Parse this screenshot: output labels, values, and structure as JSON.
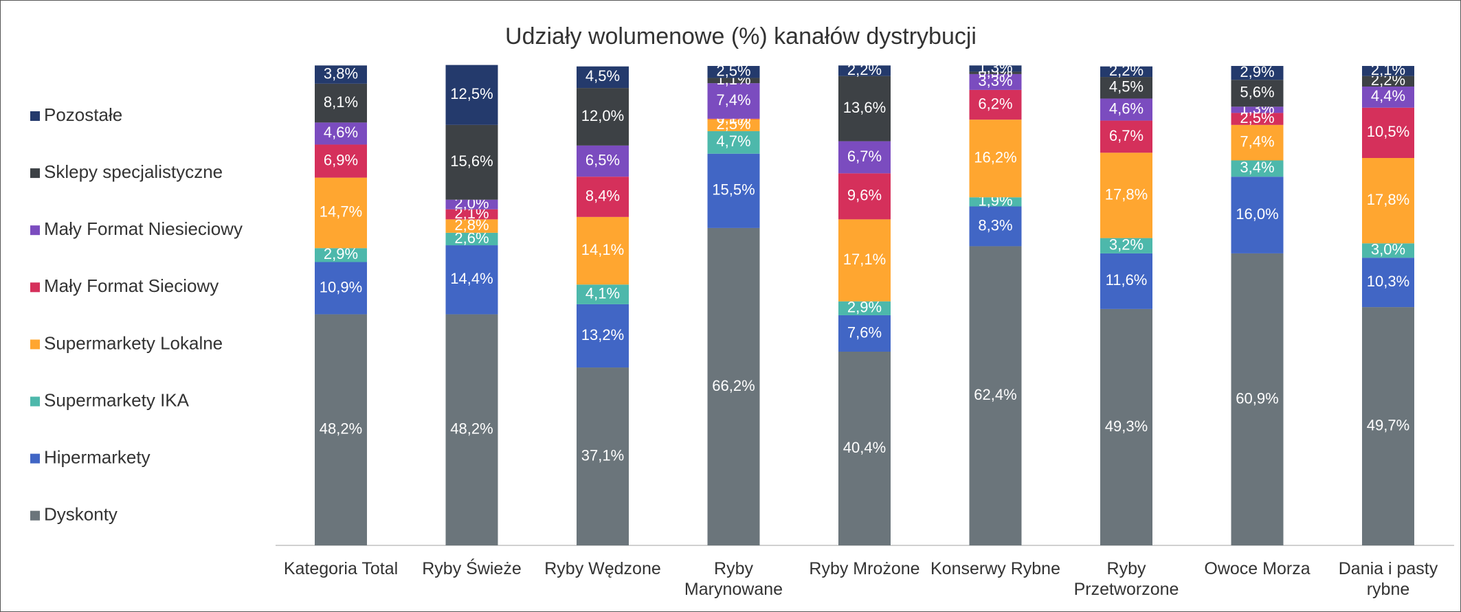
{
  "chart_data": {
    "type": "stacked_bar",
    "title": "Udziały wolumenowe (%) kanałów dystrybucji",
    "categories": [
      "Kategoria Total",
      "Ryby Świeże",
      "Ryby Wędzone",
      "Ryby Marynowane",
      "Ryby Mrożone",
      "Konserwy Rybne",
      "Ryby Przetworzone",
      "Owoce Morza",
      "Dania i pasty rybne"
    ],
    "ylim": [
      0,
      100
    ],
    "legend": "left",
    "series": [
      {
        "name": "Dyskonty",
        "color": "#6b757b",
        "values": [
          48.2,
          48.2,
          37.1,
          66.2,
          40.4,
          62.4,
          49.3,
          60.9,
          49.7
        ],
        "value_labels": [
          "48,2%",
          "48,2%",
          "37,1%",
          "66,2%",
          "40,4%",
          "62,4%",
          "49,3%",
          "60,9%",
          "49,7%"
        ]
      },
      {
        "name": "Hipermarkety",
        "color": "#4166c5",
        "values": [
          10.9,
          14.4,
          13.2,
          15.5,
          7.6,
          8.3,
          11.6,
          16.0,
          10.3
        ],
        "value_labels": [
          "10,9%",
          "14,4%",
          "13,2%",
          "15,5%",
          "7,6%",
          "8,3%",
          "11,6%",
          "16,0%",
          "10,3%"
        ]
      },
      {
        "name": "Supermarkety IKA",
        "color": "#4db8ab",
        "values": [
          2.9,
          2.6,
          4.1,
          4.7,
          2.9,
          1.9,
          3.2,
          3.4,
          3.0
        ],
        "value_labels": [
          "2,9%",
          "2,6%",
          "4,1%",
          "4,7%",
          "2,9%",
          "1,9%",
          "3,2%",
          "3,4%",
          "3,0%"
        ]
      },
      {
        "name": "Supermarkety Lokalne",
        "color": "#ffa630",
        "values": [
          14.7,
          2.8,
          14.1,
          2.5,
          17.1,
          16.2,
          17.8,
          7.4,
          17.8
        ],
        "value_labels": [
          "14,7%",
          "2,8%",
          "14,1%",
          "2,5%",
          "17,1%",
          "16,2%",
          "17,8%",
          "7,4%",
          "17,8%"
        ]
      },
      {
        "name": "Mały Format Sieciowy",
        "color": "#d5305b",
        "values": [
          6.9,
          2.1,
          8.4,
          0.1,
          9.6,
          6.2,
          6.7,
          2.5,
          10.5
        ],
        "value_labels": [
          "6,9%",
          "2,1%",
          "8,4%",
          "0,1%",
          "9,6%",
          "6,2%",
          "6,7%",
          "2,5%",
          "10,5%"
        ]
      },
      {
        "name": "Mały Format Niesieciowy",
        "color": "#7b4cbf",
        "values": [
          4.6,
          2.0,
          6.5,
          7.4,
          6.7,
          3.3,
          4.6,
          1.3,
          4.4
        ],
        "value_labels": [
          "4,6%",
          "2,0%",
          "6,5%",
          "7,4%",
          "6,7%",
          "3,3%",
          "4,6%",
          "1,3%",
          "4,4%"
        ]
      },
      {
        "name": "Sklepy specjalistyczne",
        "color": "#3d4145",
        "values": [
          8.1,
          15.6,
          12.0,
          1.1,
          13.6,
          0.5,
          4.5,
          5.6,
          2.2
        ],
        "value_labels": [
          "8,1%",
          "15,6%",
          "12,0%",
          "1,1%",
          "13,6%",
          "0,5%",
          "4,5%",
          "5,6%",
          "2,2%"
        ]
      },
      {
        "name": "Pozostałe",
        "color": "#243a6c",
        "values": [
          3.8,
          12.5,
          4.5,
          2.5,
          2.2,
          1.3,
          2.2,
          2.9,
          2.1
        ],
        "value_labels": [
          "3,8%",
          "12,5%",
          "4,5%",
          "2,5%",
          "2,2%",
          "1,3%",
          "2,2%",
          "2,9%",
          "2,1%"
        ]
      }
    ]
  }
}
